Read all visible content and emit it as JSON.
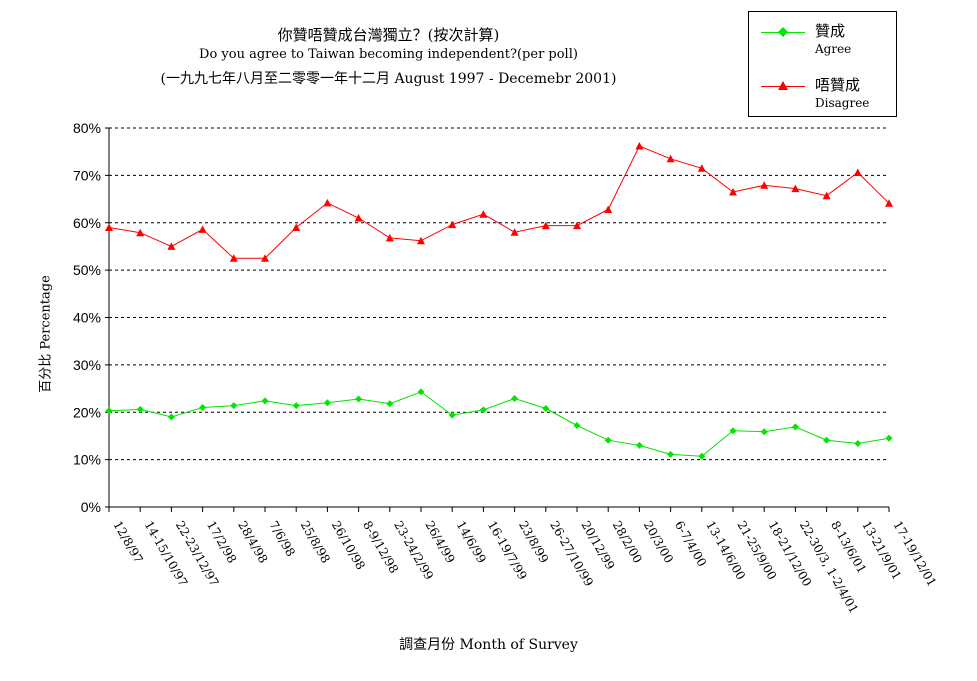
{
  "chart_data": {
    "type": "line",
    "title": "你贊唔贊成台灣獨立？(按次計算)",
    "subtitle": "Do you agree to Taiwan becoming independent?(per poll)",
    "subtitle2": "(一九九七年八月至二零零一年十二月 August 1997 - Decemebr 2001)",
    "xlabel": "調查月份 Month of Survey",
    "ylabel": "百分比 Percentage",
    "ylim": [
      0,
      80
    ],
    "yticks": [
      "0%",
      "10%",
      "20%",
      "30%",
      "40%",
      "50%",
      "60%",
      "70%",
      "80%"
    ],
    "grid": true,
    "legend_position": "top-right",
    "categories": [
      "12/8/97",
      "14-15/10/97",
      "22-23/12/97",
      "17/2/98",
      "28/4/98",
      "7/6/98",
      "25/8/98",
      "26/10/98",
      "8-9/12/98",
      "23-24/2/99",
      "26/4/99",
      "14/6/99",
      "16-19/7/99",
      "23/8/99",
      "26-27/10/99",
      "20/12/99",
      "28/2/00",
      "20/3/00",
      "6-7/4/00",
      "13-14/6/00",
      "21-25/9/00",
      "18-21/12/00",
      "22-30/3, 1-2/4/01",
      "8-13/6/01",
      "13-21/9/01",
      "17-19/12/01"
    ],
    "series": [
      {
        "name": "贊成",
        "name_en": "Agree",
        "color": "#00e600",
        "marker": "diamond",
        "values": [
          20.3,
          20.6,
          19.0,
          21.0,
          21.4,
          22.4,
          21.4,
          22.0,
          22.8,
          21.8,
          24.3,
          19.4,
          20.5,
          22.9,
          20.8,
          17.2,
          14.1,
          13.0,
          11.1,
          10.7,
          16.1,
          15.9,
          16.9,
          14.1,
          13.4,
          14.5
        ]
      },
      {
        "name": "唔贊成",
        "name_en": "Disagree",
        "color": "#ff0000",
        "marker": "triangle",
        "values": [
          59.0,
          57.9,
          55.0,
          58.6,
          52.5,
          52.5,
          59.0,
          64.2,
          61.0,
          56.8,
          56.2,
          59.6,
          61.8,
          58.0,
          59.4,
          59.4,
          62.8,
          76.2,
          73.5,
          71.5,
          66.5,
          67.9,
          67.2,
          65.7,
          70.6,
          64.1
        ]
      }
    ]
  }
}
